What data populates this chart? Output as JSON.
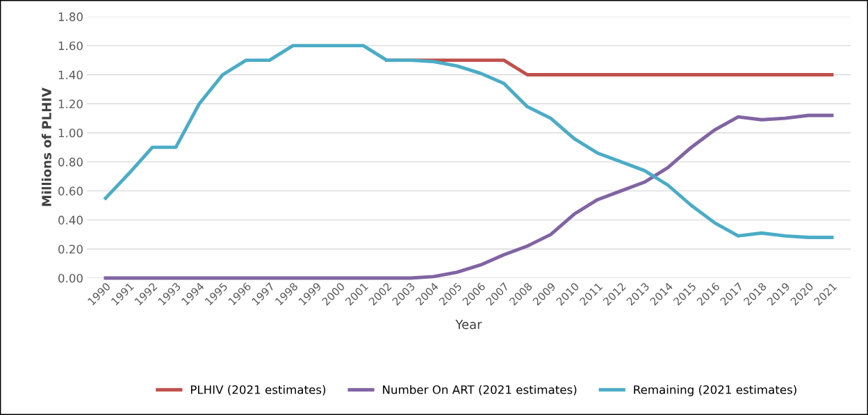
{
  "chart_data": {
    "type": "line",
    "xlabel": "Year",
    "ylabel": "Millions of PLHIV",
    "categories": [
      "1990",
      "1991",
      "1992",
      "1993",
      "1994",
      "1995",
      "1996",
      "1997",
      "1998",
      "1999",
      "2000",
      "2001",
      "2002",
      "2003",
      "2004",
      "2005",
      "2006",
      "2007",
      "2008",
      "2009",
      "2010",
      "2011",
      "2012",
      "2013",
      "2014",
      "2015",
      "2016",
      "2017",
      "2018",
      "2019",
      "2020",
      "2021"
    ],
    "series": [
      {
        "name": "PLHIV (2021 estimates)",
        "color": "#c0504d",
        "values": [
          null,
          null,
          null,
          null,
          null,
          null,
          null,
          null,
          null,
          null,
          null,
          null,
          1.5,
          1.5,
          1.5,
          1.5,
          1.5,
          1.5,
          1.4,
          1.4,
          1.4,
          1.4,
          1.4,
          1.4,
          1.4,
          1.4,
          1.4,
          1.4,
          1.4,
          1.4,
          1.4,
          1.4
        ]
      },
      {
        "name": "Number On ART (2021 estimates)",
        "color": "#8064a2",
        "values": [
          0,
          0,
          0,
          0,
          0,
          0,
          0,
          0,
          0,
          0,
          0,
          0,
          0,
          0,
          0.01,
          0.04,
          0.09,
          0.16,
          0.22,
          0.3,
          0.44,
          0.54,
          0.6,
          0.66,
          0.76,
          0.9,
          1.02,
          1.11,
          1.09,
          1.1,
          1.12,
          1.12
        ]
      },
      {
        "name": "Remaining (2021 estimates)",
        "color": "#4bacc6",
        "values": [
          0.55,
          0.72,
          0.9,
          0.9,
          1.2,
          1.4,
          1.5,
          1.5,
          1.6,
          1.6,
          1.6,
          1.6,
          1.5,
          1.5,
          1.49,
          1.46,
          1.41,
          1.34,
          1.18,
          1.1,
          0.96,
          0.86,
          0.8,
          0.74,
          0.64,
          0.5,
          0.38,
          0.29,
          0.31,
          0.29,
          0.28,
          0.28
        ]
      }
    ],
    "ylim": [
      0,
      1.8
    ],
    "yticks": [
      {
        "value": 0,
        "label": "0.00"
      },
      {
        "value": 0.2,
        "label": "0.20"
      },
      {
        "value": 0.4,
        "label": "0.40"
      },
      {
        "value": 0.6,
        "label": "0.60"
      },
      {
        "value": 0.8,
        "label": "0.80"
      },
      {
        "value": 1.0,
        "label": "1.00"
      },
      {
        "value": 1.2,
        "label": "1.20"
      },
      {
        "value": 1.4,
        "label": "1.40"
      },
      {
        "value": 1.6,
        "label": "1.60"
      },
      {
        "value": 1.8,
        "label": "1.80"
      }
    ],
    "grid": "y",
    "legend": "bottom",
    "line_style": "solid"
  }
}
